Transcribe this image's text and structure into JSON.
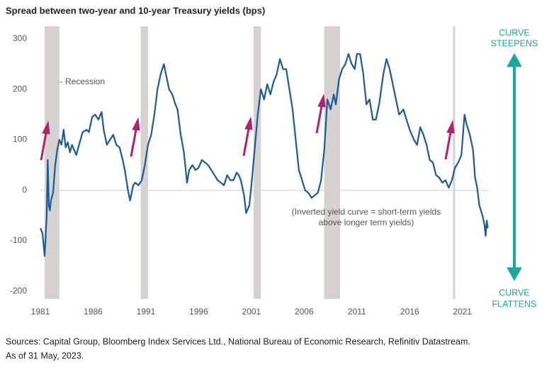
{
  "chart_data": {
    "type": "line",
    "title": "Spread between two-year and 10-year Treasury yields (bps)",
    "color": "#1a5a96",
    "xlim": [
      1981,
      2023.5
    ],
    "xticks": [
      1981,
      1986,
      1991,
      1996,
      2001,
      2006,
      2011,
      2016,
      2021
    ],
    "ylim": [
      -215,
      325
    ],
    "yticks": [
      -200,
      -100,
      0,
      100,
      200,
      300
    ],
    "recession_label": "Recession",
    "recessions": [
      [
        1981.4,
        1982.8
      ],
      [
        1990.5,
        1991.2
      ],
      [
        2001.2,
        2001.9
      ],
      [
        2007.9,
        2009.4
      ],
      [
        2020.1,
        2020.3
      ]
    ],
    "inversion_note": [
      "(Inverted yield curve = short-term yields",
      "above longer term yields)"
    ],
    "top_label": [
      "CURVE",
      "STEEPENS"
    ],
    "bottom_label": [
      "CURVE",
      "FLATTENS"
    ],
    "source": [
      "Sources: Capital Group, Bloomberg Index Services Ltd., National Bureau of Economic Research, Refinitiv Datastream.",
      "As of 31 May, 2023."
    ],
    "x": [
      1981.0,
      1981.2,
      1981.4,
      1981.6,
      1981.7,
      1981.8,
      1981.9,
      1982.0,
      1982.2,
      1982.4,
      1982.6,
      1982.8,
      1983.0,
      1983.2,
      1983.4,
      1983.6,
      1983.8,
      1984.0,
      1984.4,
      1984.8,
      1985.0,
      1985.4,
      1985.6,
      1985.9,
      1986.2,
      1986.5,
      1986.8,
      1987.0,
      1987.3,
      1987.6,
      1987.9,
      1988.2,
      1988.5,
      1988.8,
      1989.0,
      1989.3,
      1989.5,
      1989.8,
      1990.0,
      1990.3,
      1990.6,
      1990.9,
      1991.2,
      1991.5,
      1991.8,
      1992.1,
      1992.4,
      1992.7,
      1992.9,
      1993.2,
      1993.5,
      1993.8,
      1994.0,
      1994.3,
      1994.6,
      1994.9,
      1995.1,
      1995.4,
      1995.7,
      1996.0,
      1996.3,
      1996.6,
      1996.9,
      1997.2,
      1997.5,
      1997.8,
      1998.1,
      1998.4,
      1998.7,
      1999.0,
      1999.3,
      1999.6,
      1999.8,
      2000.0,
      2000.3,
      2000.5,
      2000.8,
      2001.0,
      2001.3,
      2001.6,
      2001.9,
      2002.2,
      2002.5,
      2002.8,
      2003.1,
      2003.4,
      2003.7,
      2004.0,
      2004.3,
      2004.6,
      2004.9,
      2005.2,
      2005.5,
      2005.8,
      2006.1,
      2006.4,
      2006.7,
      2007.0,
      2007.3,
      2007.6,
      2007.9,
      2008.2,
      2008.5,
      2008.8,
      2009.0,
      2009.3,
      2009.6,
      2009.9,
      2010.2,
      2010.5,
      2010.8,
      2011.0,
      2011.3,
      2011.6,
      2011.9,
      2012.2,
      2012.5,
      2012.8,
      2013.1,
      2013.5,
      2013.8,
      2014.1,
      2014.4,
      2014.7,
      2015.0,
      2015.4,
      2015.7,
      2016.0,
      2016.4,
      2016.7,
      2017.0,
      2017.3,
      2017.6,
      2017.9,
      2018.2,
      2018.5,
      2018.8,
      2019.1,
      2019.4,
      2019.7,
      2020.0,
      2020.3,
      2020.6,
      2020.9,
      2021.2,
      2021.4,
      2021.7,
      2022.0,
      2022.2,
      2022.4,
      2022.6,
      2022.9,
      2023.1,
      2023.2,
      2023.3,
      2023.4
    ],
    "values": [
      -75,
      -85,
      -130,
      -50,
      60,
      -30,
      -40,
      -20,
      -5,
      50,
      80,
      100,
      90,
      120,
      85,
      95,
      75,
      90,
      70,
      100,
      115,
      120,
      115,
      145,
      150,
      140,
      155,
      120,
      90,
      100,
      110,
      90,
      85,
      60,
      40,
      0,
      -20,
      10,
      15,
      10,
      20,
      50,
      90,
      110,
      150,
      200,
      230,
      250,
      230,
      200,
      190,
      170,
      160,
      110,
      75,
      15,
      40,
      50,
      40,
      45,
      60,
      55,
      50,
      40,
      30,
      20,
      15,
      10,
      30,
      20,
      20,
      35,
      30,
      20,
      -10,
      -45,
      -30,
      10,
      80,
      150,
      200,
      180,
      210,
      190,
      215,
      230,
      260,
      240,
      240,
      200,
      160,
      100,
      40,
      20,
      0,
      -5,
      -15,
      -10,
      -5,
      20,
      80,
      180,
      160,
      190,
      170,
      220,
      240,
      250,
      270,
      250,
      240,
      270,
      270,
      230,
      170,
      180,
      140,
      140,
      170,
      230,
      260,
      240,
      210,
      180,
      150,
      160,
      140,
      120,
      100,
      90,
      125,
      110,
      90,
      60,
      55,
      30,
      25,
      15,
      20,
      5,
      20,
      45,
      55,
      70,
      150,
      130,
      110,
      80,
      25,
      5,
      -30,
      -50,
      -70,
      -90,
      -60,
      -75
    ]
  }
}
